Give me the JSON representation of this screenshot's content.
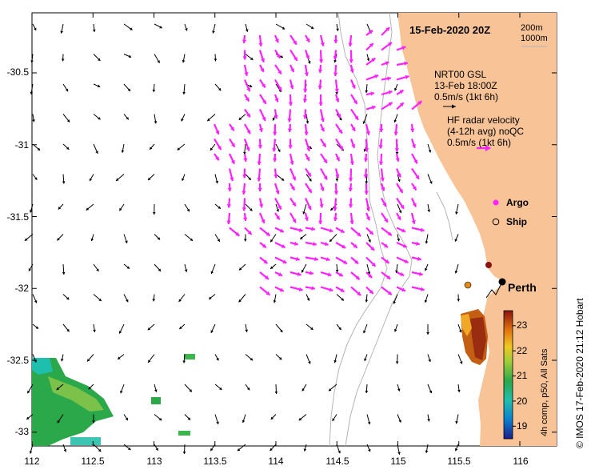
{
  "title": "15-Feb-2020 20Z",
  "depth_contours": [
    "200m",
    "1000m"
  ],
  "model_legend": {
    "source": "NRT00 GSL",
    "time": "13-Feb 18:00Z",
    "scale": "0.5m/s (1kt 6h)"
  },
  "radar_legend": {
    "line1": "HF radar velocity",
    "line2": "(4-12h avg) noQC",
    "scale": "0.5m/s (1kt 6h)"
  },
  "markers": {
    "argo": "Argo",
    "ship": "Ship"
  },
  "city": "Perth",
  "sst_colorbar": {
    "caption": "4h comp, p50, All Sats",
    "ticks": [
      "23",
      "22",
      "21",
      "20",
      "19"
    ],
    "range": [
      18.5,
      23.6
    ]
  },
  "credit": "© IMOS 17-Feb-2020 21:12 Hobart",
  "axes": {
    "x_ticks": [
      "112",
      "112.5",
      "113",
      "113.5",
      "114",
      "114.5",
      "115",
      "115.5",
      "116"
    ],
    "y_ticks": [
      "-30.5",
      "-31",
      "-31.5",
      "-32",
      "-32.5",
      "-33"
    ],
    "x_range": [
      112.0,
      116.3
    ],
    "y_range": [
      -33.1,
      -30.08
    ]
  },
  "colors": {
    "land": "#f8c497",
    "model_arrow": "#000000",
    "radar_arrow": "#ff22ff",
    "contour": "#b4b4b4"
  }
}
